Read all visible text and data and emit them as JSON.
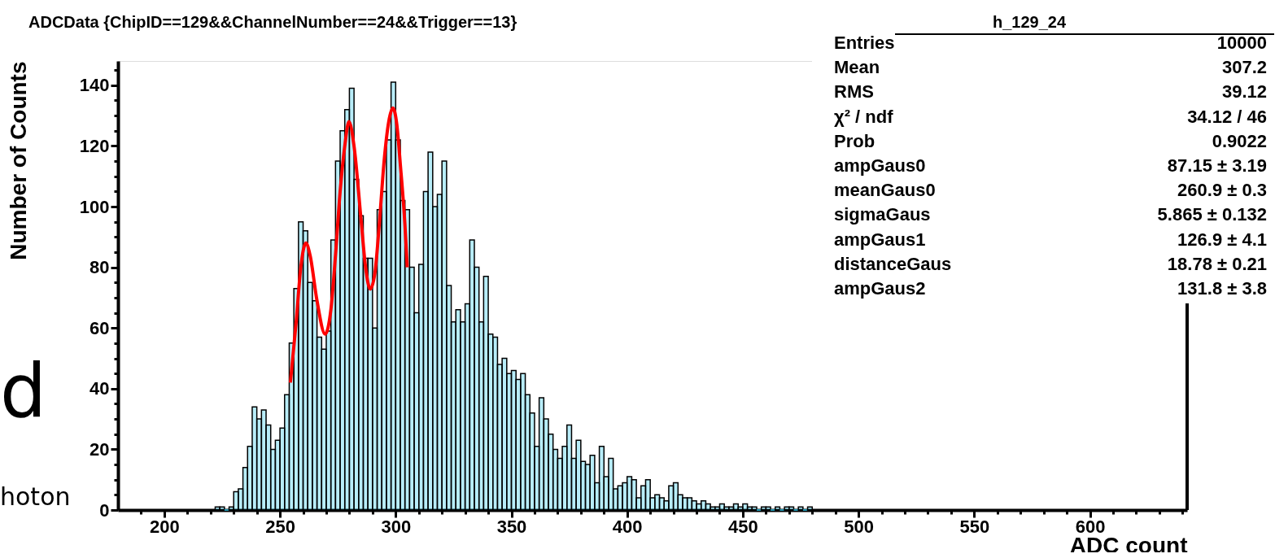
{
  "chart_data": {
    "type": "histogram",
    "title": "ADCData {ChipID==129&&ChannelNumber==24&&Trigger==13}",
    "xlabel": "ADC count",
    "ylabel": "Number of  Counts",
    "bins": [
      222,
      224,
      226,
      228,
      230,
      232,
      234,
      236,
      238,
      240,
      242,
      244,
      246,
      248,
      250,
      252,
      254,
      256,
      258,
      260,
      262,
      264,
      266,
      268,
      270,
      272,
      274,
      276,
      278,
      280,
      282,
      284,
      286,
      288,
      290,
      292,
      294,
      296,
      298,
      300,
      302,
      304,
      306,
      308,
      310,
      312,
      314,
      316,
      318,
      320,
      322,
      324,
      326,
      328,
      330,
      332,
      334,
      336,
      338,
      340,
      342,
      344,
      346,
      348,
      350,
      352,
      354,
      356,
      358,
      360,
      362,
      364,
      366,
      368,
      370,
      372,
      374,
      376,
      378,
      380,
      382,
      384,
      386,
      388,
      390,
      392,
      394,
      396,
      398,
      400,
      402,
      404,
      406,
      408,
      410,
      412,
      414,
      416,
      418,
      420,
      422,
      424,
      426,
      428,
      430,
      432,
      434,
      436,
      438,
      440,
      442,
      444,
      446,
      448,
      450,
      452,
      454,
      456,
      458,
      460,
      462,
      464,
      466,
      468,
      470,
      472,
      474,
      476,
      478,
      480
    ],
    "series": [
      {
        "color": "#33ccee",
        "values": [
          1,
          1,
          0,
          1,
          6,
          7,
          14,
          21,
          34,
          30,
          33,
          28,
          20,
          23,
          27,
          38,
          55,
          73,
          95,
          92,
          75,
          69,
          57,
          53,
          59,
          89,
          115,
          125,
          132,
          139,
          109,
          97,
          83,
          83,
          60,
          99,
          105,
          122,
          141,
          122,
          102,
          99,
          80,
          65,
          81,
          105,
          118,
          100,
          104,
          115,
          74,
          62,
          66,
          62,
          68,
          89,
          80,
          62,
          77,
          58,
          57,
          48,
          50,
          45,
          46,
          43,
          45,
          38,
          32,
          21,
          37,
          30,
          25,
          20,
          17,
          21,
          28,
          17,
          23,
          16,
          15,
          18,
          9,
          21,
          11,
          17,
          7,
          8,
          9,
          11,
          10,
          4,
          8,
          10,
          4,
          5,
          4,
          3,
          8,
          9,
          5,
          4,
          4,
          3,
          2,
          3,
          2,
          1,
          1,
          2,
          1,
          1,
          2,
          1,
          2,
          1,
          1,
          0,
          1,
          1,
          0,
          1,
          0,
          1,
          1,
          0,
          1,
          0,
          1
        ]
      },
      {
        "type": "line",
        "color": "#ff0000",
        "x": [
          254.5,
          257,
          259,
          261.2,
          263,
          266,
          269.5,
          272,
          274,
          276,
          278,
          279.8,
          282,
          285,
          287,
          289,
          291,
          293,
          295,
          297,
          298.8,
          300.5,
          302,
          304,
          305
        ],
        "values": [
          42,
          62,
          80,
          88,
          84,
          69,
          58,
          66,
          84,
          105,
          120,
          128,
          120,
          96,
          80,
          72.8,
          78,
          95,
          115,
          128,
          132.5,
          127,
          114,
          94,
          80
        ]
      }
    ],
    "xlim": [
      180,
      642
    ],
    "ylim": [
      0,
      148
    ],
    "xticks": [
      {
        "value": 190,
        "label": null
      },
      200,
      {
        "value": 210,
        "label": null
      },
      {
        "value": 220,
        "label": null
      },
      {
        "value": 230,
        "label": null
      },
      {
        "value": 240,
        "label": null
      },
      250,
      {
        "value": 260,
        "label": null
      },
      {
        "value": 270,
        "label": null
      },
      {
        "value": 280,
        "label": null
      },
      {
        "value": 290,
        "label": null
      },
      300,
      {
        "value": 310,
        "label": null
      },
      {
        "value": 320,
        "label": null
      },
      {
        "value": 330,
        "label": null
      },
      {
        "value": 340,
        "label": null
      },
      350,
      {
        "value": 360,
        "label": null
      },
      {
        "value": 370,
        "label": null
      },
      {
        "value": 380,
        "label": null
      },
      {
        "value": 390,
        "label": null
      },
      400,
      {
        "value": 410,
        "label": null
      },
      {
        "value": 420,
        "label": null
      },
      {
        "value": 430,
        "label": null
      },
      {
        "value": 440,
        "label": null
      },
      450,
      {
        "value": 460,
        "label": null
      },
      {
        "value": 470,
        "label": null
      },
      {
        "value": 480,
        "label": null
      },
      {
        "value": 490,
        "label": null
      },
      500,
      {
        "value": 510,
        "label": null
      },
      {
        "value": 520,
        "label": null
      },
      {
        "value": 530,
        "label": null
      },
      {
        "value": 540,
        "label": null
      },
      550,
      {
        "value": 560,
        "label": null
      },
      {
        "value": 570,
        "label": null
      },
      {
        "value": 580,
        "label": null
      },
      {
        "value": 590,
        "label": null
      },
      600,
      {
        "value": 610,
        "label": null
      },
      {
        "value": 620,
        "label": null
      },
      {
        "value": 630,
        "label": null
      },
      {
        "value": 640,
        "label": null
      }
    ],
    "yticks": [
      0,
      {
        "value": 5,
        "label": null
      },
      {
        "value": 10,
        "label": null
      },
      {
        "value": 15,
        "label": null
      },
      20,
      {
        "value": 25,
        "label": null
      },
      {
        "value": 30,
        "label": null
      },
      {
        "value": 35,
        "label": null
      },
      40,
      {
        "value": 45,
        "label": null
      },
      {
        "value": 50,
        "label": null
      },
      {
        "value": 55,
        "label": null
      },
      60,
      {
        "value": 65,
        "label": null
      },
      {
        "value": 70,
        "label": null
      },
      {
        "value": 75,
        "label": null
      },
      80,
      {
        "value": 85,
        "label": null
      },
      {
        "value": 90,
        "label": null
      },
      {
        "value": 95,
        "label": null
      },
      100,
      {
        "value": 105,
        "label": null
      },
      {
        "value": 110,
        "label": null
      },
      {
        "value": 115,
        "label": null
      },
      120,
      {
        "value": 125,
        "label": null
      },
      {
        "value": 130,
        "label": null
      },
      {
        "value": 135,
        "label": null
      },
      140,
      {
        "value": 145,
        "label": null
      }
    ],
    "grid": false,
    "legend": false,
    "annotations": [
      "h_129_24",
      "Entries",
      "10000",
      "Mean",
      "307.2",
      "RMS",
      "39.12",
      "χ² / ndf",
      "34.12 / 46",
      "Prob",
      "0.9022",
      "ampGaus0",
      "87.15 ± 3.19",
      "meanGaus0",
      "260.9 ± 0.3",
      "sigmaGaus",
      "5.865 ± 0.132",
      "ampGaus1",
      "126.9 ± 4.1",
      "distanceGaus",
      "18.78 ± 0.21",
      "ampGaus2",
      "131.8 ± 3.8",
      "d",
      "hoton"
    ]
  }
}
